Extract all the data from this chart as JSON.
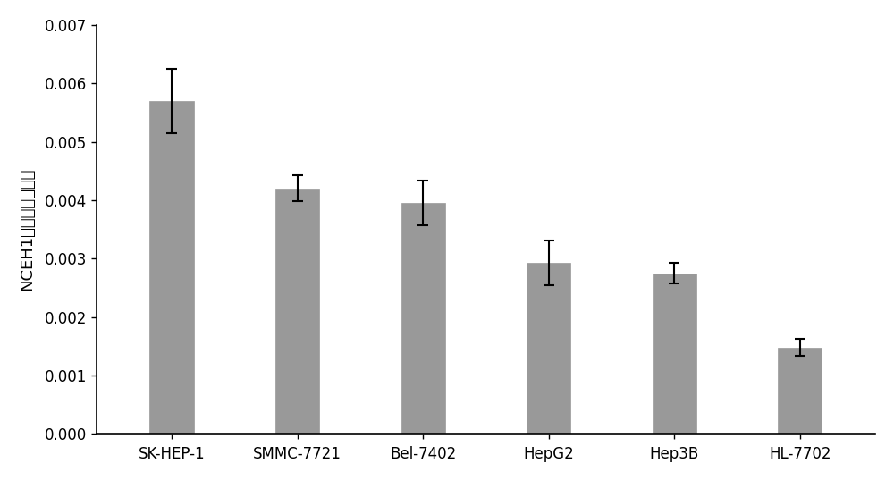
{
  "categories": [
    "SK-HEP-1",
    "SMMC-7721",
    "Bel-7402",
    "HepG2",
    "Hep3B",
    "HL-7702"
  ],
  "values": [
    0.0057,
    0.0042,
    0.00395,
    0.00293,
    0.00275,
    0.00148
  ],
  "errors": [
    0.00055,
    0.00022,
    0.00038,
    0.00038,
    0.00018,
    0.00015
  ],
  "bar_color": "#999999",
  "bar_edgecolor": "#999999",
  "error_color": "black",
  "ylabel": "NCEH1基因相对表达量",
  "ylim": [
    0,
    0.007
  ],
  "yticks": [
    0.0,
    0.001,
    0.002,
    0.003,
    0.004,
    0.005,
    0.006,
    0.007
  ],
  "background_color": "#ffffff",
  "bar_width": 0.35,
  "capsize": 4,
  "ylabel_fontsize": 13,
  "tick_fontsize": 12,
  "figsize": [
    10.0,
    5.38
  ],
  "dpi": 100
}
